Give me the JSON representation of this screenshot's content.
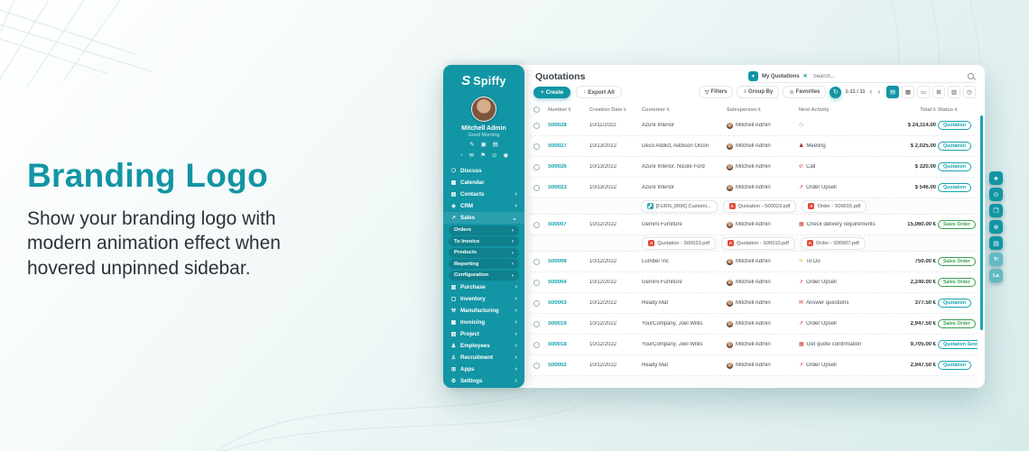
{
  "hero": {
    "title": "Branding Logo",
    "description": "Show your branding logo with modern animation effect when hovered unpinned sidebar."
  },
  "colors": {
    "accent": "#1295a4",
    "green": "#37a04c",
    "badge_teal": "#15a4b2"
  },
  "icons": {
    "close": "✕",
    "plus": "+",
    "download": "↓",
    "funnel": "▼",
    "funnel_outline": "▽",
    "list": "≡",
    "star": "☆",
    "refresh": "↻",
    "prev": "‹",
    "next": "›",
    "sort": "⇅",
    "view_list": "▤",
    "view_kanban": "▦",
    "view_calendar": "▭",
    "view_pivot": "⊞",
    "view_graph": "▥",
    "view_activity": "◷"
  },
  "app": {
    "sidebar": {
      "brand": "Spiffy",
      "brand_mark": "S",
      "user": {
        "name": "Mitchell Admin",
        "greeting": "Good Morning"
      },
      "quick_icons_row1": [
        {
          "name": "notes-icon",
          "glyph": "✎"
        },
        {
          "name": "briefcase-icon",
          "glyph": "▣"
        },
        {
          "name": "messages-icon",
          "glyph": "▤"
        }
      ],
      "quick_icons_row2": [
        {
          "name": "fleet-icon",
          "glyph": "◔"
        },
        {
          "name": "mail-icon",
          "glyph": "✉"
        },
        {
          "name": "flag-icon",
          "glyph": "⚑"
        },
        {
          "name": "lock-icon",
          "glyph": "⊙"
        },
        {
          "name": "location-icon",
          "glyph": "◉"
        }
      ],
      "menu": [
        {
          "label": "Discuss",
          "icon": "discuss-icon"
        },
        {
          "label": "Calendar",
          "icon": "calendar-icon"
        },
        {
          "label": "Contacts",
          "icon": "contacts-icon",
          "chevron": "›"
        },
        {
          "label": "CRM",
          "icon": "crm-icon",
          "chevron": "›"
        },
        {
          "label": "Sales",
          "icon": "sales-icon",
          "chevron": "⌄",
          "active": true
        }
      ],
      "submenu": [
        "Orders",
        "To Invoice",
        "Products",
        "Reporting",
        "Configuration"
      ],
      "menu_bottom": [
        {
          "label": "Purchase",
          "icon": "purchase-icon",
          "chevron": "›"
        },
        {
          "label": "Inventory",
          "icon": "inventory-icon",
          "chevron": "›"
        },
        {
          "label": "Manufacturing",
          "icon": "manufacturing-icon",
          "chevron": "›"
        },
        {
          "label": "Invoicing",
          "icon": "invoicing-icon",
          "chevron": "›"
        },
        {
          "label": "Project",
          "icon": "project-icon",
          "chevron": "›"
        },
        {
          "label": "Employees",
          "icon": "employees-icon",
          "chevron": "›"
        },
        {
          "label": "Recruitment",
          "icon": "recruitment-icon",
          "chevron": "›"
        },
        {
          "label": "Apps",
          "icon": "apps-icon",
          "chevron": "›"
        },
        {
          "label": "Settings",
          "icon": "settings-icon",
          "chevron": "›"
        }
      ]
    },
    "topbar": {
      "title": "Quotations",
      "filter_chip": "My Quotations",
      "search_placeholder": "Search...",
      "create_label": "Create",
      "export_label": "Export All",
      "filters_label": "Filters",
      "group_by_label": "Group By",
      "favorites_label": "Favorites",
      "pager": "1-11 / 11"
    },
    "table": {
      "headers": [
        {
          "label": "Number",
          "sortable": true
        },
        {
          "label": "Creation Date",
          "sortable": true
        },
        {
          "label": "Customer",
          "sortable": true
        },
        {
          "label": "Salesperson",
          "sortable": true
        },
        {
          "label": "Next Activity",
          "sortable": false
        },
        {
          "label": "Total",
          "sortable": true
        },
        {
          "label": "Status",
          "sortable": true
        }
      ],
      "rows": [
        {
          "number": "S00028",
          "date": "10/11/2022",
          "customer": "Azure Interior",
          "salesperson": "Mitchell Admin",
          "activity": {
            "type": "clock",
            "label": ""
          },
          "total": "$ 24,114.00",
          "status": "Quotation"
        },
        {
          "number": "S00027",
          "date": "10/13/2022",
          "customer": "Deco Addict, Addison Olson",
          "salesperson": "Mitchell Admin",
          "activity": {
            "type": "meeting",
            "label": "Meeting"
          },
          "total": "$ 2,025.00",
          "status": "Quotation"
        },
        {
          "number": "S00026",
          "date": "10/13/2022",
          "customer": "Azure Interior, Nicole Ford",
          "salesperson": "Mitchell Admin",
          "activity": {
            "type": "call",
            "label": "Call"
          },
          "total": "$ 320.00",
          "status": "Quotation"
        },
        {
          "number": "S00023",
          "date": "10/13/2022",
          "customer": "Azure Interior",
          "salesperson": "Mitchell Admin",
          "activity": {
            "type": "upsell",
            "label": "Order Upsell"
          },
          "total": "$ 546.00",
          "status": "Quotation",
          "attachments": [
            {
              "type": "image",
              "label": "[FURN_0096] Customi..."
            },
            {
              "type": "pdf",
              "label": "Quotation - S00023.pdf"
            },
            {
              "type": "pdf",
              "label": "Order - S00015.pdf"
            }
          ]
        },
        {
          "number": "S00007",
          "date": "10/12/2022",
          "customer": "Gemini Furniture",
          "salesperson": "Mitchell Admin",
          "activity": {
            "type": "calendar",
            "label": "Check delivery requirements"
          },
          "total": "15,060.00 €",
          "status": "Sales Order",
          "attachments": [
            {
              "type": "pdf",
              "label": "Quotation - S00023.pdf"
            },
            {
              "type": "pdf",
              "label": "Quotation - S00010.pdf"
            },
            {
              "type": "pdf",
              "label": "Order - S00007.pdf"
            }
          ]
        },
        {
          "number": "S00006",
          "date": "10/12/2022",
          "customer": "Lumber Inc",
          "salesperson": "Mitchell Admin",
          "activity": {
            "type": "todo",
            "label": "To Do"
          },
          "total": "750.00 €",
          "status": "Sales Order"
        },
        {
          "number": "S00004",
          "date": "10/12/2022",
          "customer": "Gemini Furniture",
          "salesperson": "Mitchell Admin",
          "activity": {
            "type": "upsell",
            "label": "Order Upsell"
          },
          "total": "2,240.00 €",
          "status": "Sales Order"
        },
        {
          "number": "S00003",
          "date": "10/12/2022",
          "customer": "Ready Mat",
          "salesperson": "Mitchell Admin",
          "activity": {
            "type": "email",
            "label": "Answer questions"
          },
          "total": "377.50 €",
          "status": "Quotation"
        },
        {
          "number": "S00019",
          "date": "10/12/2022",
          "customer": "YourCompany, Joel Willis",
          "salesperson": "Mitchell Admin",
          "activity": {
            "type": "upsell",
            "label": "Order Upsell"
          },
          "total": "2,947.50 €",
          "status": "Sales Order"
        },
        {
          "number": "S00018",
          "date": "10/12/2022",
          "customer": "YourCompany, Joel Willis",
          "salesperson": "Mitchell Admin",
          "activity": {
            "type": "calendar",
            "label": "Get quote confirmation"
          },
          "total": "9,705.00 €",
          "status": "Quotation Sent"
        },
        {
          "number": "S00002",
          "date": "10/12/2022",
          "customer": "Ready Mat",
          "salesperson": "Mitchell Admin",
          "activity": {
            "type": "upsell",
            "label": "Order Upsell"
          },
          "total": "2,947.50 €",
          "status": "Quotation"
        }
      ]
    },
    "status_colors": {
      "Quotation": "#15a4b2",
      "Sales Order": "#37a04c",
      "Quotation Sent": "#15a4b2"
    },
    "right_toolbar": [
      {
        "name": "favorites-button",
        "glyph": "★"
      },
      {
        "name": "search-button",
        "glyph": "⊙"
      },
      {
        "name": "fullscreen-button",
        "glyph": "❒"
      },
      {
        "name": "zoom-button",
        "glyph": "⊕"
      },
      {
        "name": "docs-button",
        "glyph": "▤"
      },
      {
        "name": "translate-button",
        "glyph": "Tr",
        "light": true
      },
      {
        "name": "language-button",
        "glyph": "La",
        "light": true
      }
    ]
  }
}
